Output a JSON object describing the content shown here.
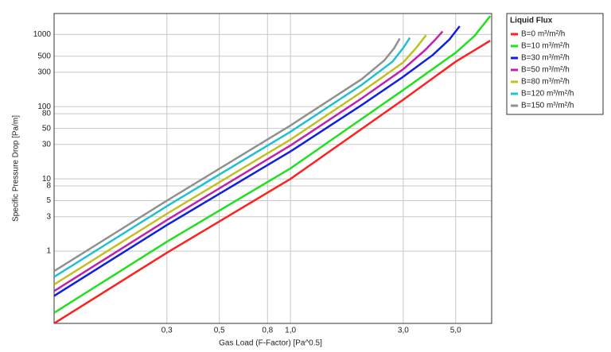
{
  "chart_data": {
    "type": "line",
    "x_label": "Gas Load (F-Factor) [Pa^0.5]",
    "y_label": "Specific Pressure Drop [Pa/m]",
    "log_x": true,
    "log_y": true,
    "grid": true,
    "legend": "outside-right",
    "legend_title": "Liquid Flux",
    "xlim": [
      0.1,
      7.1
    ],
    "ylim": [
      0.1,
      1950
    ],
    "xticks": [
      {
        "value": 0.3,
        "label": "0,3"
      },
      {
        "value": 0.5,
        "label": "0,5"
      },
      {
        "value": 0.8,
        "label": "0,8"
      },
      {
        "value": 1.0,
        "label": "1,0"
      },
      {
        "value": 3.0,
        "label": "3,0"
      },
      {
        "value": 5.0,
        "label": "5,0"
      }
    ],
    "yticks": [
      1,
      3,
      5,
      8,
      10,
      30,
      50,
      80,
      100,
      300,
      500,
      1000
    ],
    "series": [
      {
        "name": "B=0 m³/m²/h",
        "color": "#ff2020",
        "x": [
          0.1,
          0.3,
          1,
          3,
          5,
          7
        ],
        "values": [
          0.1,
          0.95,
          10,
          125,
          420,
          820
        ]
      },
      {
        "name": "B=10 m³/m²/h",
        "color": "#20e020",
        "x": [
          0.1,
          0.3,
          1,
          3,
          5,
          6,
          7
        ],
        "values": [
          0.14,
          1.35,
          14,
          170,
          560,
          950,
          1800
        ]
      },
      {
        "name": "B=30 m³/m²/h",
        "color": "#1020e0",
        "x": [
          0.1,
          0.3,
          1,
          2,
          3,
          4,
          4.7,
          5.2
        ],
        "values": [
          0.24,
          2.3,
          24,
          105,
          260,
          520,
          850,
          1300
        ]
      },
      {
        "name": "B=50 m³/m²/h",
        "color": "#c020b0",
        "x": [
          0.1,
          0.3,
          1,
          2,
          3,
          3.7,
          4.1,
          4.4
        ],
        "values": [
          0.28,
          2.7,
          29,
          130,
          330,
          600,
          850,
          1100
        ]
      },
      {
        "name": "B=80 m³/m²/h",
        "color": "#c0c020",
        "x": [
          0.1,
          0.3,
          1,
          2,
          3,
          3.4,
          3.75
        ],
        "values": [
          0.345,
          3.3,
          35,
          160,
          410,
          650,
          980
        ]
      },
      {
        "name": "B=120 m³/m²/h",
        "color": "#20c0d0",
        "x": [
          0.1,
          0.3,
          1,
          2,
          2.7,
          3.0,
          3.2
        ],
        "values": [
          0.44,
          4.2,
          45,
          200,
          420,
          650,
          900
        ]
      },
      {
        "name": "B=150 m³/m²/h",
        "color": "#909090",
        "x": [
          0.1,
          0.3,
          1,
          2,
          2.5,
          2.75,
          2.9
        ],
        "values": [
          0.53,
          5,
          55,
          240,
          440,
          650,
          880
        ]
      }
    ]
  }
}
